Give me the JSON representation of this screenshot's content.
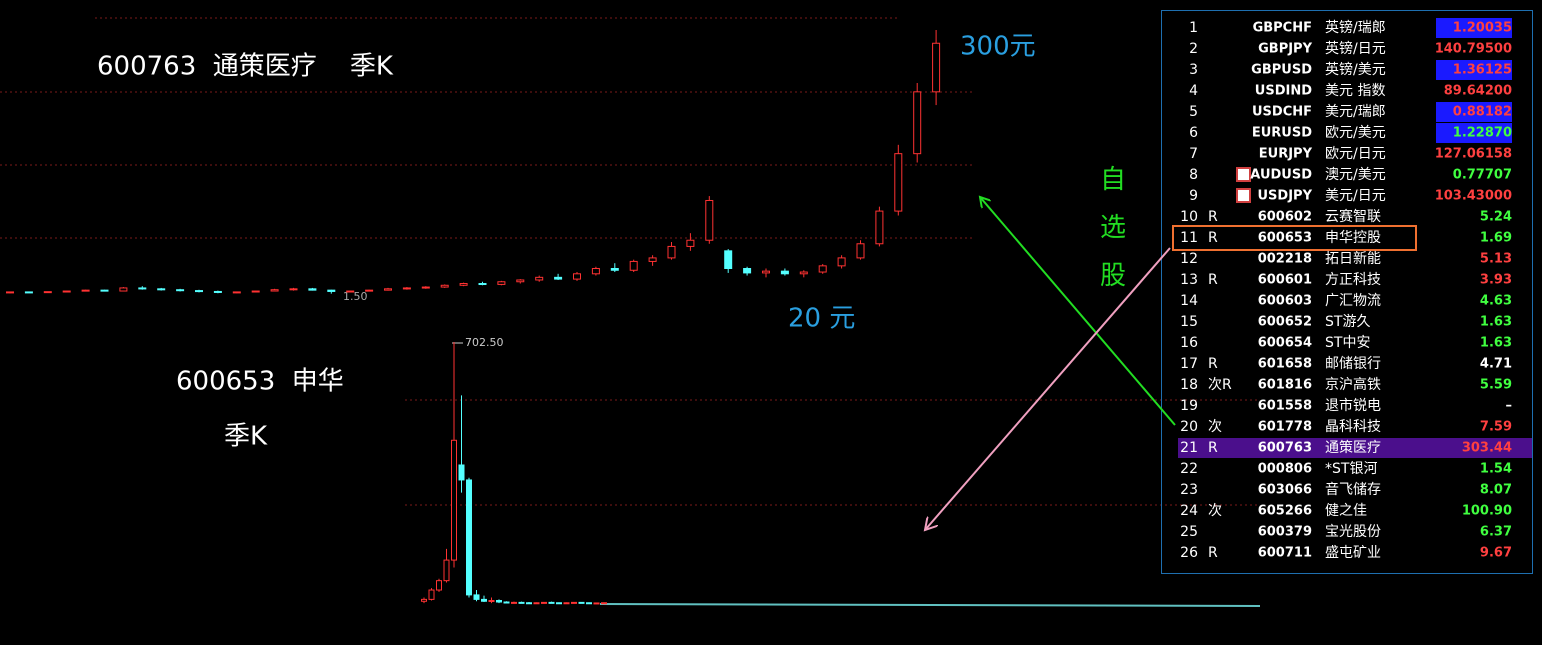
{
  "annotations": {
    "top_title": "600763  通策医疗    季K",
    "top_high": "300元",
    "top_low": "20 元",
    "side_label": "自选股",
    "bottom_title": "600653  申华",
    "bottom_period": "季K"
  },
  "top_chart": {
    "low_label": "1.50",
    "ylim": [
      0,
      300
    ],
    "candles": [
      [
        3,
        4,
        2,
        3.5
      ],
      [
        3.5,
        4,
        3,
        3
      ],
      [
        3,
        4,
        2.5,
        3.8
      ],
      [
        3.8,
        5,
        3.5,
        4.5
      ],
      [
        4.5,
        6,
        4,
        5.5
      ],
      [
        5.5,
        6,
        4,
        4.5
      ],
      [
        4.5,
        9,
        4,
        8
      ],
      [
        8,
        10,
        6,
        7
      ],
      [
        7,
        8,
        5,
        6
      ],
      [
        6,
        7,
        4,
        5
      ],
      [
        5,
        6,
        3,
        4
      ],
      [
        4,
        5,
        2,
        3
      ],
      [
        3,
        4,
        2,
        3.5
      ],
      [
        3.5,
        5,
        3,
        4.5
      ],
      [
        4.5,
        7,
        4,
        6
      ],
      [
        6,
        8,
        5,
        7
      ],
      [
        7,
        8,
        5,
        5.5
      ],
      [
        5.5,
        6,
        1.5,
        4
      ],
      [
        4,
        5,
        3,
        4.5
      ],
      [
        4.5,
        6,
        4,
        5.5
      ],
      [
        5.5,
        8,
        5,
        7
      ],
      [
        7,
        9,
        6,
        8
      ],
      [
        8,
        10,
        7,
        9
      ],
      [
        9,
        12,
        8,
        11
      ],
      [
        11,
        14,
        10,
        13
      ],
      [
        13,
        15,
        11,
        12
      ],
      [
        12,
        16,
        11,
        15
      ],
      [
        15,
        18,
        13,
        17
      ],
      [
        17,
        22,
        15,
        20
      ],
      [
        20,
        24,
        17,
        18
      ],
      [
        18,
        26,
        16,
        24
      ],
      [
        24,
        32,
        22,
        30
      ],
      [
        30,
        36,
        26,
        28
      ],
      [
        28,
        40,
        26,
        38
      ],
      [
        38,
        45,
        33,
        42
      ],
      [
        42,
        60,
        40,
        55
      ],
      [
        55,
        70,
        50,
        62
      ],
      [
        62,
        112,
        58,
        107
      ],
      [
        50,
        52,
        25,
        30
      ],
      [
        30,
        32,
        22,
        25
      ],
      [
        25,
        30,
        20,
        27
      ],
      [
        27,
        30,
        22,
        24
      ],
      [
        24,
        28,
        20,
        26
      ],
      [
        26,
        35,
        24,
        33
      ],
      [
        33,
        45,
        30,
        42
      ],
      [
        42,
        62,
        40,
        58
      ],
      [
        58,
        100,
        55,
        95
      ],
      [
        95,
        170,
        90,
        160
      ],
      [
        160,
        240,
        150,
        230
      ],
      [
        230,
        300,
        215,
        285
      ]
    ]
  },
  "bottom_chart": {
    "high_label": "702.50",
    "ylim": [
      0,
      702.5
    ],
    "candles": [
      [
        10,
        20,
        5,
        15
      ],
      [
        15,
        45,
        12,
        40
      ],
      [
        40,
        70,
        35,
        65
      ],
      [
        65,
        150,
        60,
        120
      ],
      [
        120,
        702.5,
        100,
        440
      ],
      [
        374,
        560,
        300,
        334
      ],
      [
        334,
        340,
        20,
        27
      ],
      [
        27,
        40,
        10,
        15
      ],
      [
        15,
        25,
        8,
        10
      ],
      [
        10,
        20,
        5,
        12
      ],
      [
        12,
        15,
        5,
        8
      ],
      [
        8,
        10,
        4,
        6
      ],
      [
        6,
        9,
        4,
        7
      ],
      [
        7,
        9,
        5,
        6
      ],
      [
        6,
        8,
        4,
        5
      ],
      [
        5,
        7,
        4,
        6
      ],
      [
        6,
        8,
        5,
        7
      ],
      [
        7,
        9,
        5,
        6
      ],
      [
        6,
        7,
        4,
        5
      ],
      [
        5,
        7,
        4,
        6
      ],
      [
        6,
        8,
        5,
        7
      ],
      [
        7,
        8,
        5,
        6
      ],
      [
        6,
        7,
        4,
        5
      ],
      [
        5,
        6,
        4,
        5.5
      ],
      [
        5.5,
        7,
        5,
        6
      ]
    ]
  },
  "watchlist": {
    "rows": [
      {
        "no": "1",
        "code": "GBPCHF",
        "name": "英镑/瑞郎",
        "price": "1.20035",
        "color": "#ff4040",
        "bg": "#1a1aff"
      },
      {
        "no": "2",
        "code": "GBPJPY",
        "name": "英镑/日元",
        "price": "140.79500",
        "color": "#ff4040"
      },
      {
        "no": "3",
        "code": "GBPUSD",
        "name": "英镑/美元",
        "price": "1.36125",
        "color": "#ff4040",
        "bg": "#1a1aff"
      },
      {
        "no": "4",
        "code": "USDIND",
        "name": "美元 指数",
        "price": "89.64200",
        "color": "#ff4040"
      },
      {
        "no": "5",
        "code": "USDCHF",
        "name": "美元/瑞郎",
        "price": "0.88182",
        "color": "#ff4040",
        "bg": "#1a1aff"
      },
      {
        "no": "6",
        "code": "EURUSD",
        "name": "欧元/美元",
        "price": "1.22870",
        "color": "#40ff40",
        "bg": "#1a1aff"
      },
      {
        "no": "7",
        "code": "EURJPY",
        "name": "欧元/日元",
        "price": "127.06158",
        "color": "#ff4040"
      },
      {
        "no": "8",
        "code": "AUDUSD",
        "name": "澳元/美元",
        "price": "0.77707",
        "color": "#40ff40",
        "icon": true
      },
      {
        "no": "9",
        "code": "USDJPY",
        "name": "美元/日元",
        "price": "103.43000",
        "color": "#ff4040",
        "icon": true
      },
      {
        "no": "10",
        "flag": "R",
        "code": "600602",
        "name": "云赛智联",
        "price": "5.24",
        "color": "#40ff40"
      },
      {
        "no": "11",
        "flag": "R",
        "code": "600653",
        "name": "申华控股",
        "price": "1.69",
        "color": "#40ff40",
        "boxed": true
      },
      {
        "no": "12",
        "code": "002218",
        "name": "拓日新能",
        "price": "5.13",
        "color": "#ff4040"
      },
      {
        "no": "13",
        "flag": "R",
        "code": "600601",
        "name": "方正科技",
        "price": "3.93",
        "color": "#ff4040"
      },
      {
        "no": "14",
        "code": "600603",
        "name": "广汇物流",
        "price": "4.63",
        "color": "#40ff40"
      },
      {
        "no": "15",
        "code": "600652",
        "name": "ST游久",
        "price": "1.63",
        "color": "#40ff40"
      },
      {
        "no": "16",
        "code": "600654",
        "name": "ST中安",
        "price": "1.63",
        "color": "#40ff40"
      },
      {
        "no": "17",
        "flag": "R",
        "code": "601658",
        "name": "邮储银行",
        "price": "4.71",
        "color": "#ffffff"
      },
      {
        "no": "18",
        "flag": "次R",
        "code": "601816",
        "name": "京沪高铁",
        "price": "5.59",
        "color": "#40ff40"
      },
      {
        "no": "19",
        "code": "601558",
        "name": "退市锐电",
        "price": "–",
        "color": "#ffffff"
      },
      {
        "no": "20",
        "flag": "次",
        "code": "601778",
        "name": "晶科科技",
        "price": "7.59",
        "color": "#ff4040"
      },
      {
        "no": "21",
        "flag": "R",
        "code": "600763",
        "name": "通策医疗",
        "price": "303.44",
        "color": "#ff4040",
        "selected": true
      },
      {
        "no": "22",
        "code": "000806",
        "name": "*ST银河",
        "price": "1.54",
        "color": "#40ff40"
      },
      {
        "no": "23",
        "code": "603066",
        "name": "音飞储存",
        "price": "8.07",
        "color": "#40ff40"
      },
      {
        "no": "24",
        "flag": "次",
        "code": "605266",
        "name": "健之佳",
        "price": "100.90",
        "color": "#40ff40"
      },
      {
        "no": "25",
        "code": "600379",
        "name": "宝光股份",
        "price": "6.37",
        "color": "#40ff40"
      },
      {
        "no": "26",
        "flag": "R",
        "code": "600711",
        "name": "盛屯矿业",
        "price": "9.67",
        "color": "#ff4040"
      }
    ]
  }
}
